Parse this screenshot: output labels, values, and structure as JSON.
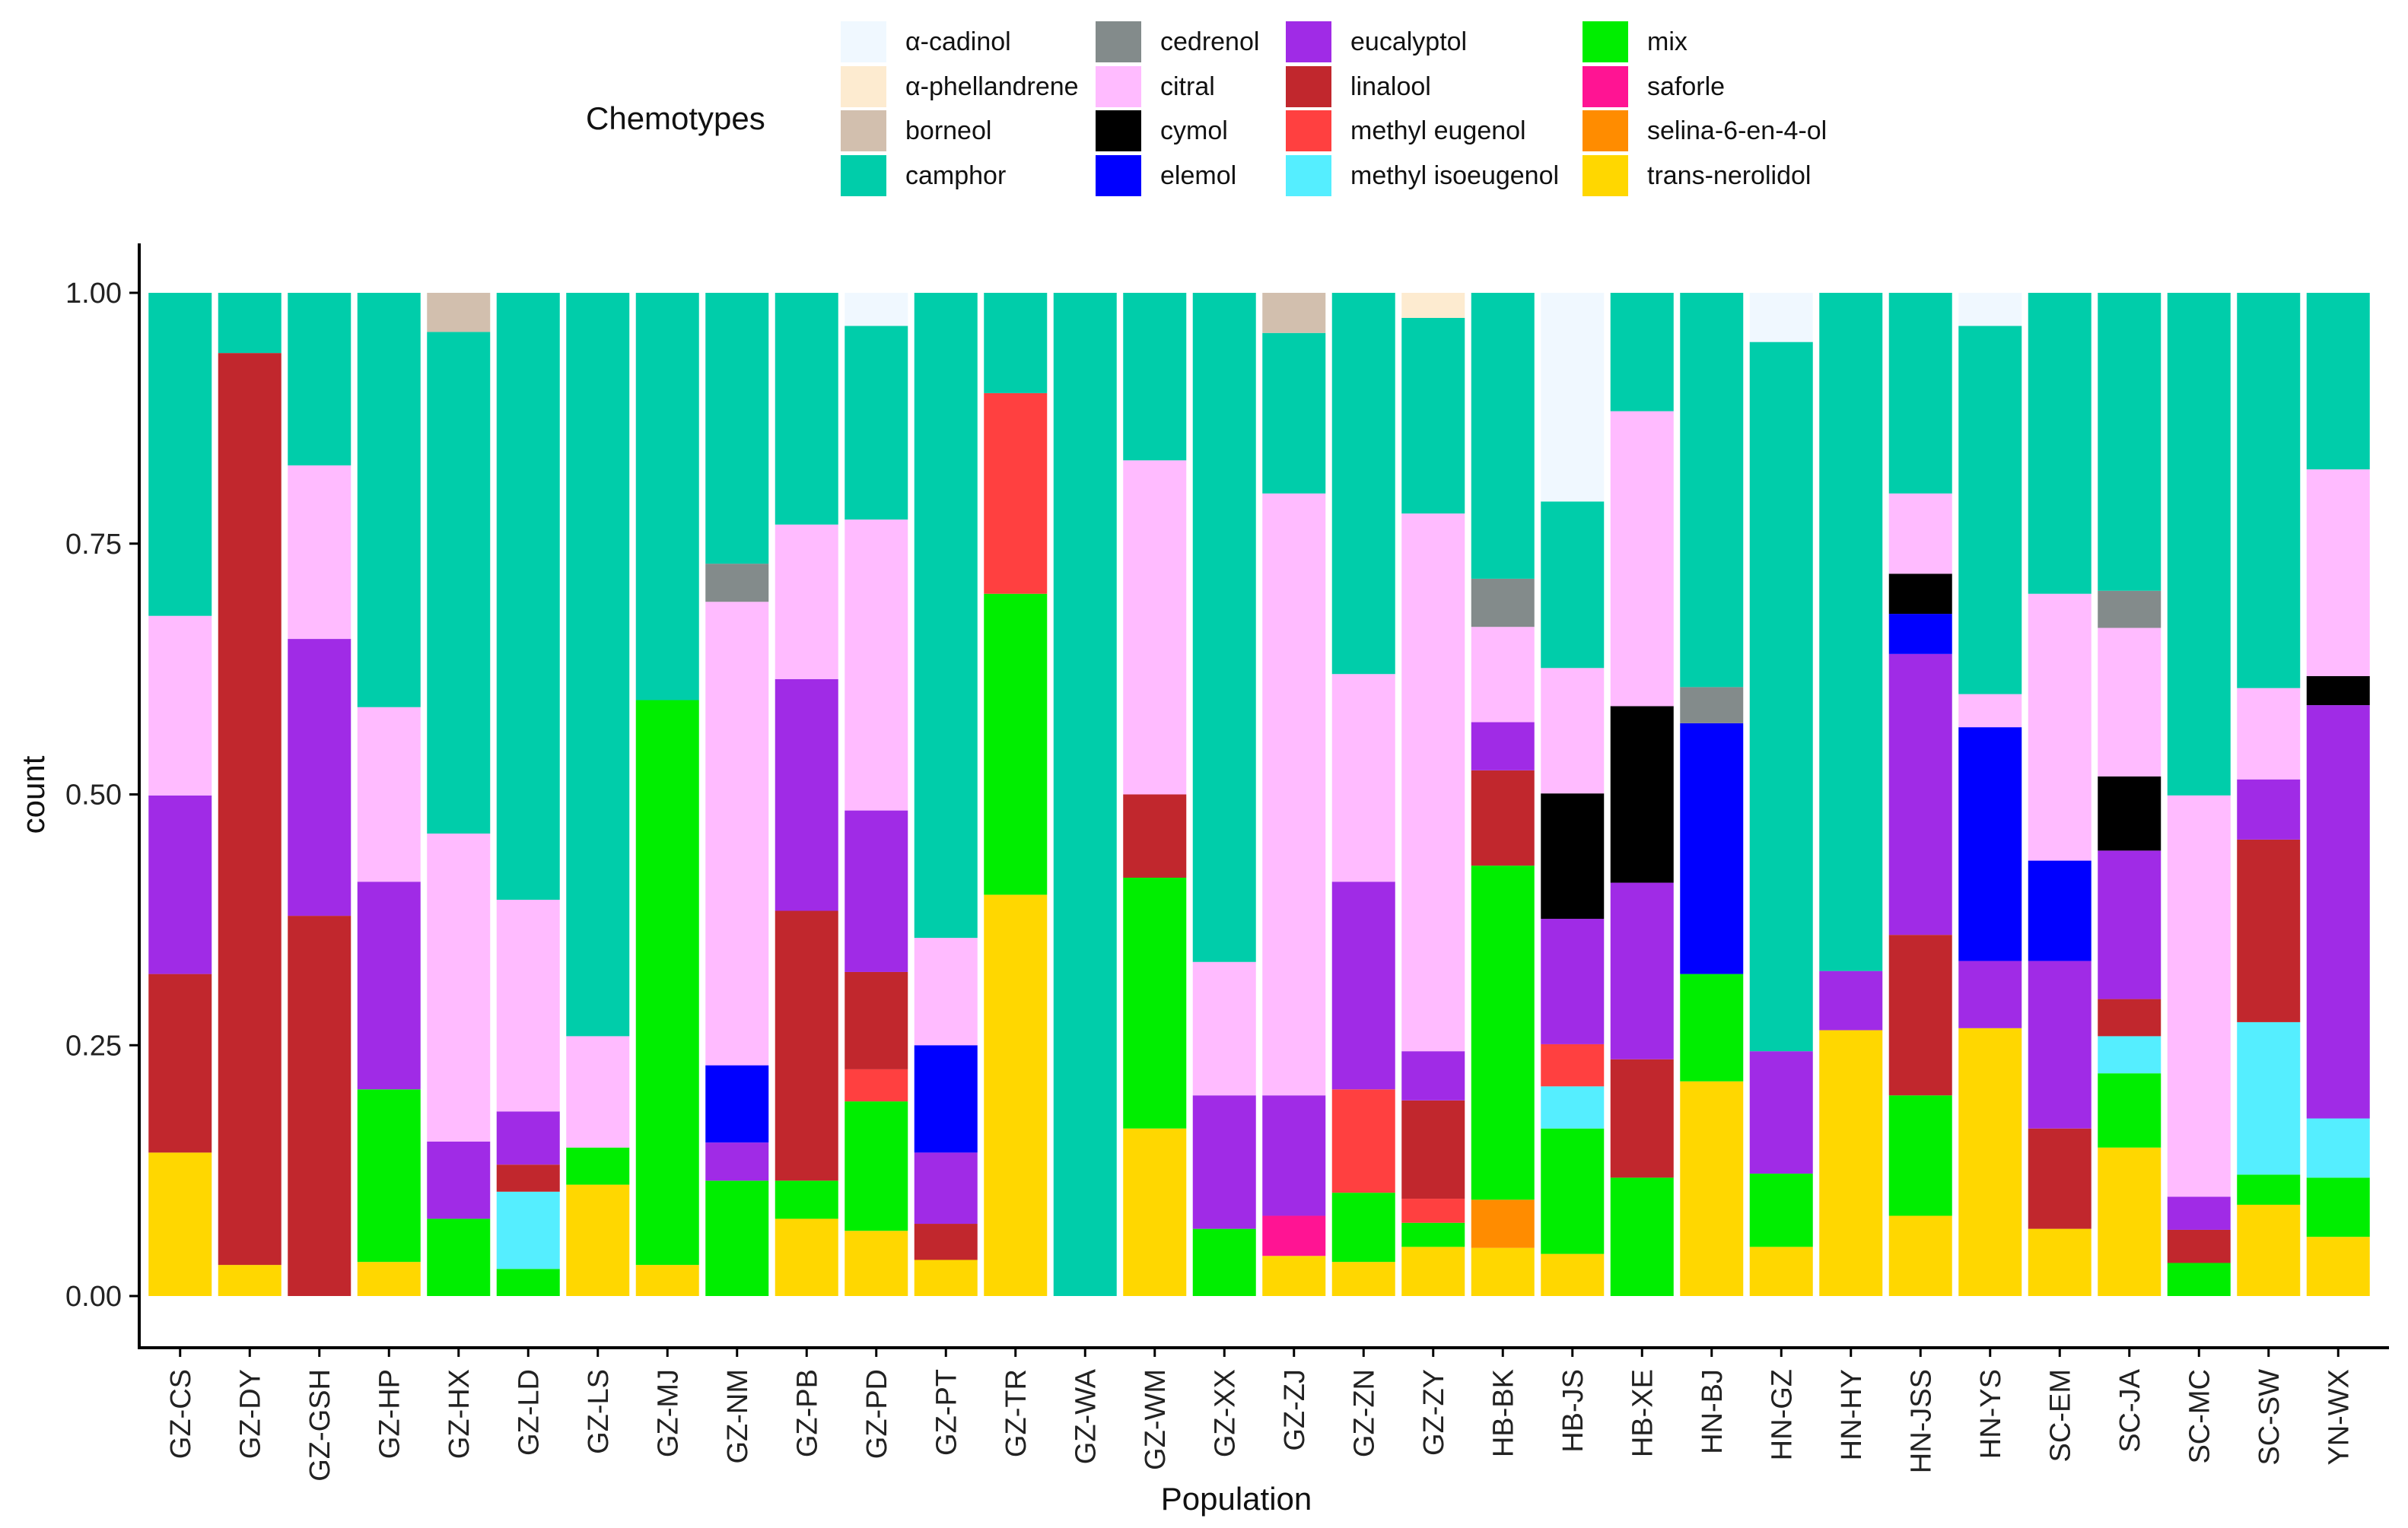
{
  "chart_data": {
    "type": "bar",
    "stacked": true,
    "xlabel": "Population",
    "ylabel": "count",
    "ylim": [
      0,
      1
    ],
    "yticks": [
      "0.00",
      "0.25",
      "0.50",
      "0.75",
      "1.00"
    ],
    "legend_title": "Chemotypes",
    "legend_position": "top",
    "chemotypes": [
      {
        "name": "α-cadinol",
        "color": "#F0F8FF"
      },
      {
        "name": "α-phellandrene",
        "color": "#FDEBD0"
      },
      {
        "name": "borneol",
        "color": "#D2BFAE"
      },
      {
        "name": "camphor",
        "color": "#00CDAA"
      },
      {
        "name": "cedrenol",
        "color": "#838B8B"
      },
      {
        "name": "citral",
        "color": "#FFBBFF"
      },
      {
        "name": "cymol",
        "color": "#000000"
      },
      {
        "name": "elemol",
        "color": "#0000FF"
      },
      {
        "name": "eucalyptol",
        "color": "#A02BE6"
      },
      {
        "name": "linalool",
        "color": "#C1272D"
      },
      {
        "name": "methyl eugenol",
        "color": "#FF4040"
      },
      {
        "name": "methyl isoeugenol",
        "color": "#55EEFF"
      },
      {
        "name": "mix",
        "color": "#00EE00"
      },
      {
        "name": "saforle",
        "color": "#FF1493"
      },
      {
        "name": "selina-6-en-4-ol",
        "color": "#FF8C00"
      },
      {
        "name": "trans-nerolidol",
        "color": "#FFD700"
      }
    ],
    "categories": [
      "GZ-CS",
      "GZ-DY",
      "GZ-GSH",
      "GZ-HP",
      "GZ-HX",
      "GZ-LD",
      "GZ-LS",
      "GZ-MJ",
      "GZ-NM",
      "GZ-PB",
      "GZ-PD",
      "GZ-PT",
      "GZ-TR",
      "GZ-WA",
      "GZ-WM",
      "GZ-XX",
      "GZ-ZJ",
      "GZ-ZN",
      "GZ-ZY",
      "HB-BK",
      "HB-JS",
      "HB-XE",
      "HN-BJ",
      "HN-GZ",
      "HN-HY",
      "HN-JSS",
      "HN-YS",
      "SC-EM",
      "SC-JA",
      "SC-MC",
      "SC-SW",
      "YN-WX"
    ],
    "stacks": [
      [
        [
          "trans-nerolidol",
          0.143
        ],
        [
          "linalool",
          0.178
        ],
        [
          "eucalyptol",
          0.178
        ],
        [
          "citral",
          0.179
        ],
        [
          "camphor",
          0.322
        ]
      ],
      [
        [
          "trans-nerolidol",
          0.031
        ],
        [
          "linalool",
          0.909
        ],
        [
          "camphor",
          0.06
        ]
      ],
      [
        [
          "linalool",
          0.379
        ],
        [
          "eucalyptol",
          0.276
        ],
        [
          "citral",
          0.173
        ],
        [
          "camphor",
          0.172
        ]
      ],
      [
        [
          "trans-nerolidol",
          0.034
        ],
        [
          "mix",
          0.172
        ],
        [
          "eucalyptol",
          0.207
        ],
        [
          "citral",
          0.174
        ],
        [
          "camphor",
          0.413
        ]
      ],
      [
        [
          "mix",
          0.077
        ],
        [
          "eucalyptol",
          0.077
        ],
        [
          "citral",
          0.307
        ],
        [
          "camphor",
          0.5
        ],
        [
          "borneol",
          0.039
        ]
      ],
      [
        [
          "mix",
          0.027
        ],
        [
          "methyl isoeugenol",
          0.077
        ],
        [
          "linalool",
          0.027
        ],
        [
          "eucalyptol",
          0.053
        ],
        [
          "citral",
          0.211
        ],
        [
          "camphor",
          0.605
        ]
      ],
      [
        [
          "trans-nerolidol",
          0.111
        ],
        [
          "mix",
          0.037
        ],
        [
          "citral",
          0.111
        ],
        [
          "camphor",
          0.741
        ]
      ],
      [
        [
          "trans-nerolidol",
          0.031
        ],
        [
          "mix",
          0.563
        ],
        [
          "camphor",
          0.406
        ]
      ],
      [
        [
          "mix",
          0.115
        ],
        [
          "eucalyptol",
          0.038
        ],
        [
          "elemol",
          0.077
        ],
        [
          "citral",
          0.462
        ],
        [
          "cedrenol",
          0.038
        ],
        [
          "camphor",
          0.27
        ]
      ],
      [
        [
          "trans-nerolidol",
          0.077
        ],
        [
          "mix",
          0.038
        ],
        [
          "linalool",
          0.269
        ],
        [
          "eucalyptol",
          0.231
        ],
        [
          "citral",
          0.154
        ],
        [
          "camphor",
          0.231
        ]
      ],
      [
        [
          "trans-nerolidol",
          0.065
        ],
        [
          "mix",
          0.129
        ],
        [
          "methyl eugenol",
          0.032
        ],
        [
          "linalool",
          0.097
        ],
        [
          "eucalyptol",
          0.161
        ],
        [
          "citral",
          0.29
        ],
        [
          "camphor",
          0.193
        ],
        [
          "α-cadinol",
          0.033
        ]
      ],
      [
        [
          "trans-nerolidol",
          0.036
        ],
        [
          "linalool",
          0.036
        ],
        [
          "eucalyptol",
          0.071
        ],
        [
          "elemol",
          0.107
        ],
        [
          "citral",
          0.107
        ],
        [
          "camphor",
          0.643
        ]
      ],
      [
        [
          "trans-nerolidol",
          0.4
        ],
        [
          "mix",
          0.3
        ],
        [
          "methyl eugenol",
          0.2
        ],
        [
          "camphor",
          0.1
        ]
      ],
      [
        [
          "camphor",
          1.0
        ]
      ],
      [
        [
          "trans-nerolidol",
          0.167
        ],
        [
          "mix",
          0.25
        ],
        [
          "linalool",
          0.083
        ],
        [
          "citral",
          0.333
        ],
        [
          "camphor",
          0.167
        ]
      ],
      [
        [
          "mix",
          0.067
        ],
        [
          "eucalyptol",
          0.133
        ],
        [
          "citral",
          0.133
        ],
        [
          "camphor",
          0.667
        ]
      ],
      [
        [
          "trans-nerolidol",
          0.04
        ],
        [
          "saforle",
          0.04
        ],
        [
          "eucalyptol",
          0.12
        ],
        [
          "citral",
          0.6
        ],
        [
          "camphor",
          0.16
        ],
        [
          "borneol",
          0.04
        ]
      ],
      [
        [
          "trans-nerolidol",
          0.034
        ],
        [
          "mix",
          0.069
        ],
        [
          "methyl eugenol",
          0.103
        ],
        [
          "eucalyptol",
          0.207
        ],
        [
          "citral",
          0.207
        ],
        [
          "camphor",
          0.38
        ]
      ],
      [
        [
          "trans-nerolidol",
          0.049
        ],
        [
          "mix",
          0.024
        ],
        [
          "methyl eugenol",
          0.024
        ],
        [
          "linalool",
          0.098
        ],
        [
          "eucalyptol",
          0.049
        ],
        [
          "citral",
          0.536
        ],
        [
          "camphor",
          0.195
        ],
        [
          "α-phellandrene",
          0.025
        ]
      ],
      [
        [
          "trans-nerolidol",
          0.048
        ],
        [
          "selina-6-en-4-ol",
          0.048
        ],
        [
          "mix",
          0.333
        ],
        [
          "linalool",
          0.095
        ],
        [
          "eucalyptol",
          0.048
        ],
        [
          "citral",
          0.095
        ],
        [
          "cedrenol",
          0.048
        ],
        [
          "camphor",
          0.285
        ]
      ],
      [
        [
          "trans-nerolidol",
          0.042
        ],
        [
          "mix",
          0.125
        ],
        [
          "methyl isoeugenol",
          0.042
        ],
        [
          "methyl eugenol",
          0.042
        ],
        [
          "eucalyptol",
          0.125
        ],
        [
          "cymol",
          0.125
        ],
        [
          "citral",
          0.125
        ],
        [
          "camphor",
          0.166
        ],
        [
          "α-cadinol",
          0.208
        ]
      ],
      [
        [
          "mix",
          0.118
        ],
        [
          "linalool",
          0.118
        ],
        [
          "eucalyptol",
          0.176
        ],
        [
          "cymol",
          0.176
        ],
        [
          "citral",
          0.294
        ],
        [
          "camphor",
          0.118
        ]
      ],
      [
        [
          "trans-nerolidol",
          0.214
        ],
        [
          "mix",
          0.107
        ],
        [
          "elemol",
          0.25
        ],
        [
          "cedrenol",
          0.036
        ],
        [
          "camphor",
          0.393
        ]
      ],
      [
        [
          "trans-nerolidol",
          0.049
        ],
        [
          "mix",
          0.073
        ],
        [
          "eucalyptol",
          0.122
        ],
        [
          "camphor",
          0.707
        ],
        [
          "α-cadinol",
          0.049
        ]
      ],
      [
        [
          "trans-nerolidol",
          0.265
        ],
        [
          "eucalyptol",
          0.059
        ],
        [
          "camphor",
          0.676
        ]
      ],
      [
        [
          "trans-nerolidol",
          0.08
        ],
        [
          "mix",
          0.12
        ],
        [
          "linalool",
          0.16
        ],
        [
          "eucalyptol",
          0.28
        ],
        [
          "elemol",
          0.04
        ],
        [
          "cymol",
          0.04
        ],
        [
          "citral",
          0.08
        ],
        [
          "camphor",
          0.2
        ]
      ],
      [
        [
          "trans-nerolidol",
          0.267
        ],
        [
          "eucalyptol",
          0.067
        ],
        [
          "elemol",
          0.233
        ],
        [
          "citral",
          0.033
        ],
        [
          "camphor",
          0.367
        ],
        [
          "α-cadinol",
          0.033
        ]
      ],
      [
        [
          "trans-nerolidol",
          0.067
        ],
        [
          "linalool",
          0.1
        ],
        [
          "eucalyptol",
          0.167
        ],
        [
          "elemol",
          0.1
        ],
        [
          "citral",
          0.266
        ],
        [
          "camphor",
          0.3
        ]
      ],
      [
        [
          "trans-nerolidol",
          0.148
        ],
        [
          "mix",
          0.074
        ],
        [
          "methyl isoeugenol",
          0.037
        ],
        [
          "linalool",
          0.037
        ],
        [
          "eucalyptol",
          0.148
        ],
        [
          "cymol",
          0.074
        ],
        [
          "citral",
          0.148
        ],
        [
          "cedrenol",
          0.037
        ],
        [
          "camphor",
          0.297
        ]
      ],
      [
        [
          "mix",
          0.033
        ],
        [
          "linalool",
          0.033
        ],
        [
          "eucalyptol",
          0.033
        ],
        [
          "citral",
          0.4
        ],
        [
          "camphor",
          0.501
        ]
      ],
      [
        [
          "trans-nerolidol",
          0.091
        ],
        [
          "mix",
          0.03
        ],
        [
          "methyl isoeugenol",
          0.152
        ],
        [
          "linalool",
          0.182
        ],
        [
          "eucalyptol",
          0.06
        ],
        [
          "citral",
          0.091
        ],
        [
          "camphor",
          0.394
        ]
      ],
      [
        [
          "trans-nerolidol",
          0.059
        ],
        [
          "mix",
          0.059
        ],
        [
          "methyl isoeugenol",
          0.059
        ],
        [
          "eucalyptol",
          0.412
        ],
        [
          "cymol",
          0.029
        ],
        [
          "citral",
          0.206
        ],
        [
          "camphor",
          0.176
        ]
      ]
    ]
  }
}
